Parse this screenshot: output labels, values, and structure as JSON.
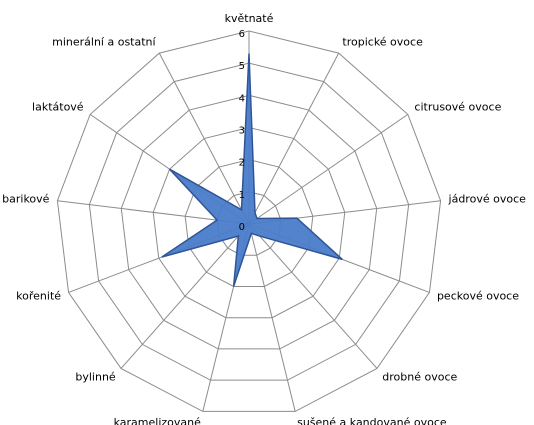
{
  "chart_data": {
    "type": "radar",
    "categories": [
      "květnaté",
      "tropické ovoce",
      "citrusové ovoce",
      "jádrové ovoce",
      "peckové ovoce",
      "drobné ovoce",
      "sušené a kandované ovoce",
      "karamelizované",
      "bylinné",
      "kořenité",
      "barikové",
      "laktátové",
      "minerální a ostatní"
    ],
    "values": [
      5.3,
      0.4,
      0.3,
      1.5,
      3.1,
      0.5,
      0.3,
      2,
      0.5,
      2.9,
      1,
      3,
      0.5
    ],
    "color": "#4a7cc9",
    "ylim": [
      0,
      6
    ],
    "yticks": [
      0,
      1,
      2,
      3,
      4,
      5,
      6
    ],
    "grid": true
  }
}
